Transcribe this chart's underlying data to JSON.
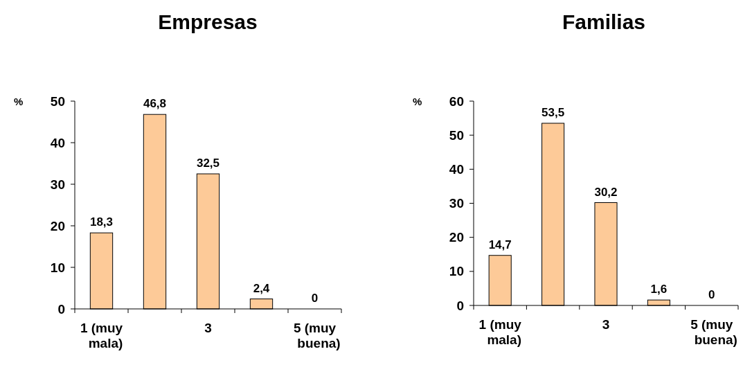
{
  "chart_data": [
    {
      "type": "bar",
      "title": "Empresas",
      "ylabel": "%",
      "categories": [
        "1 (muy mala)",
        null,
        "3",
        null,
        "5 (muy buena)"
      ],
      "values": [
        18.3,
        46.8,
        32.5,
        2.4,
        0
      ],
      "value_labels": [
        "18,3",
        "46,8",
        "32,5",
        "2,4",
        "0"
      ],
      "color": "#fdca98",
      "ylim": [
        0,
        50
      ],
      "yticks": [
        0,
        10,
        20,
        30,
        40,
        50
      ]
    },
    {
      "type": "bar",
      "title": "Familias",
      "ylabel": "%",
      "categories": [
        "1 (muy mala)",
        null,
        "3",
        null,
        "5 (muy buena)"
      ],
      "values": [
        14.7,
        53.5,
        30.2,
        1.6,
        0
      ],
      "value_labels": [
        "14,7",
        "53,5",
        "30,2",
        "1,6",
        "0"
      ],
      "color": "#fdca98",
      "ylim": [
        0,
        60
      ],
      "yticks": [
        0,
        10,
        20,
        30,
        40,
        50,
        60
      ]
    }
  ]
}
